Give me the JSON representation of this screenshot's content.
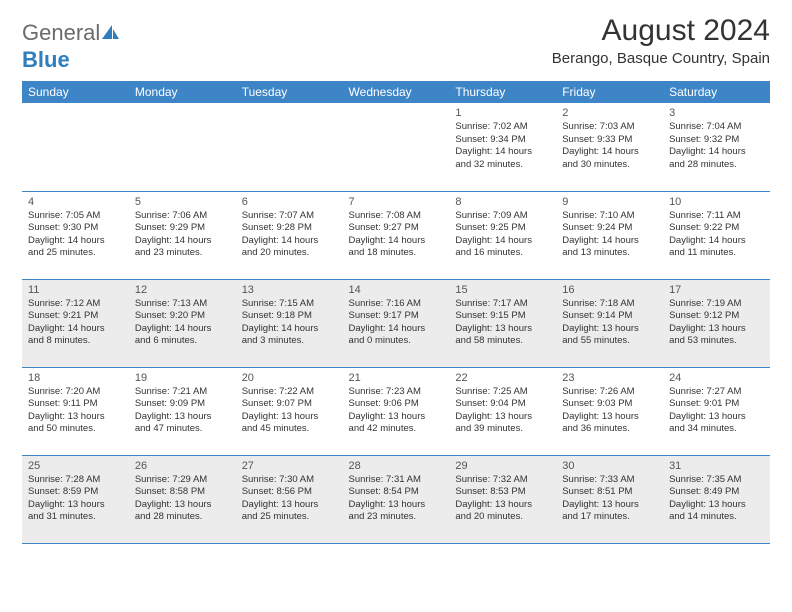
{
  "brand": {
    "part1": "General",
    "part2": "Blue"
  },
  "title": "August 2024",
  "location": "Berango, Basque Country, Spain",
  "colors": {
    "header_bg": "#3d85c6",
    "header_fg": "#ffffff",
    "shade_bg": "#ececec",
    "border": "#3d85c6",
    "logo_gray": "#6b6b6b",
    "logo_blue": "#2f7fbf"
  },
  "weekdays": [
    "Sunday",
    "Monday",
    "Tuesday",
    "Wednesday",
    "Thursday",
    "Friday",
    "Saturday"
  ],
  "weeks": [
    [
      {
        "n": "",
        "sr": "",
        "ss": "",
        "dl": ""
      },
      {
        "n": "",
        "sr": "",
        "ss": "",
        "dl": ""
      },
      {
        "n": "",
        "sr": "",
        "ss": "",
        "dl": ""
      },
      {
        "n": "",
        "sr": "",
        "ss": "",
        "dl": ""
      },
      {
        "n": "1",
        "sr": "Sunrise: 7:02 AM",
        "ss": "Sunset: 9:34 PM",
        "dl": "Daylight: 14 hours and 32 minutes."
      },
      {
        "n": "2",
        "sr": "Sunrise: 7:03 AM",
        "ss": "Sunset: 9:33 PM",
        "dl": "Daylight: 14 hours and 30 minutes."
      },
      {
        "n": "3",
        "sr": "Sunrise: 7:04 AM",
        "ss": "Sunset: 9:32 PM",
        "dl": "Daylight: 14 hours and 28 minutes."
      }
    ],
    [
      {
        "n": "4",
        "sr": "Sunrise: 7:05 AM",
        "ss": "Sunset: 9:30 PM",
        "dl": "Daylight: 14 hours and 25 minutes."
      },
      {
        "n": "5",
        "sr": "Sunrise: 7:06 AM",
        "ss": "Sunset: 9:29 PM",
        "dl": "Daylight: 14 hours and 23 minutes."
      },
      {
        "n": "6",
        "sr": "Sunrise: 7:07 AM",
        "ss": "Sunset: 9:28 PM",
        "dl": "Daylight: 14 hours and 20 minutes."
      },
      {
        "n": "7",
        "sr": "Sunrise: 7:08 AM",
        "ss": "Sunset: 9:27 PM",
        "dl": "Daylight: 14 hours and 18 minutes."
      },
      {
        "n": "8",
        "sr": "Sunrise: 7:09 AM",
        "ss": "Sunset: 9:25 PM",
        "dl": "Daylight: 14 hours and 16 minutes."
      },
      {
        "n": "9",
        "sr": "Sunrise: 7:10 AM",
        "ss": "Sunset: 9:24 PM",
        "dl": "Daylight: 14 hours and 13 minutes."
      },
      {
        "n": "10",
        "sr": "Sunrise: 7:11 AM",
        "ss": "Sunset: 9:22 PM",
        "dl": "Daylight: 14 hours and 11 minutes."
      }
    ],
    [
      {
        "n": "11",
        "sr": "Sunrise: 7:12 AM",
        "ss": "Sunset: 9:21 PM",
        "dl": "Daylight: 14 hours and 8 minutes."
      },
      {
        "n": "12",
        "sr": "Sunrise: 7:13 AM",
        "ss": "Sunset: 9:20 PM",
        "dl": "Daylight: 14 hours and 6 minutes."
      },
      {
        "n": "13",
        "sr": "Sunrise: 7:15 AM",
        "ss": "Sunset: 9:18 PM",
        "dl": "Daylight: 14 hours and 3 minutes."
      },
      {
        "n": "14",
        "sr": "Sunrise: 7:16 AM",
        "ss": "Sunset: 9:17 PM",
        "dl": "Daylight: 14 hours and 0 minutes."
      },
      {
        "n": "15",
        "sr": "Sunrise: 7:17 AM",
        "ss": "Sunset: 9:15 PM",
        "dl": "Daylight: 13 hours and 58 minutes."
      },
      {
        "n": "16",
        "sr": "Sunrise: 7:18 AM",
        "ss": "Sunset: 9:14 PM",
        "dl": "Daylight: 13 hours and 55 minutes."
      },
      {
        "n": "17",
        "sr": "Sunrise: 7:19 AM",
        "ss": "Sunset: 9:12 PM",
        "dl": "Daylight: 13 hours and 53 minutes."
      }
    ],
    [
      {
        "n": "18",
        "sr": "Sunrise: 7:20 AM",
        "ss": "Sunset: 9:11 PM",
        "dl": "Daylight: 13 hours and 50 minutes."
      },
      {
        "n": "19",
        "sr": "Sunrise: 7:21 AM",
        "ss": "Sunset: 9:09 PM",
        "dl": "Daylight: 13 hours and 47 minutes."
      },
      {
        "n": "20",
        "sr": "Sunrise: 7:22 AM",
        "ss": "Sunset: 9:07 PM",
        "dl": "Daylight: 13 hours and 45 minutes."
      },
      {
        "n": "21",
        "sr": "Sunrise: 7:23 AM",
        "ss": "Sunset: 9:06 PM",
        "dl": "Daylight: 13 hours and 42 minutes."
      },
      {
        "n": "22",
        "sr": "Sunrise: 7:25 AM",
        "ss": "Sunset: 9:04 PM",
        "dl": "Daylight: 13 hours and 39 minutes."
      },
      {
        "n": "23",
        "sr": "Sunrise: 7:26 AM",
        "ss": "Sunset: 9:03 PM",
        "dl": "Daylight: 13 hours and 36 minutes."
      },
      {
        "n": "24",
        "sr": "Sunrise: 7:27 AM",
        "ss": "Sunset: 9:01 PM",
        "dl": "Daylight: 13 hours and 34 minutes."
      }
    ],
    [
      {
        "n": "25",
        "sr": "Sunrise: 7:28 AM",
        "ss": "Sunset: 8:59 PM",
        "dl": "Daylight: 13 hours and 31 minutes."
      },
      {
        "n": "26",
        "sr": "Sunrise: 7:29 AM",
        "ss": "Sunset: 8:58 PM",
        "dl": "Daylight: 13 hours and 28 minutes."
      },
      {
        "n": "27",
        "sr": "Sunrise: 7:30 AM",
        "ss": "Sunset: 8:56 PM",
        "dl": "Daylight: 13 hours and 25 minutes."
      },
      {
        "n": "28",
        "sr": "Sunrise: 7:31 AM",
        "ss": "Sunset: 8:54 PM",
        "dl": "Daylight: 13 hours and 23 minutes."
      },
      {
        "n": "29",
        "sr": "Sunrise: 7:32 AM",
        "ss": "Sunset: 8:53 PM",
        "dl": "Daylight: 13 hours and 20 minutes."
      },
      {
        "n": "30",
        "sr": "Sunrise: 7:33 AM",
        "ss": "Sunset: 8:51 PM",
        "dl": "Daylight: 13 hours and 17 minutes."
      },
      {
        "n": "31",
        "sr": "Sunrise: 7:35 AM",
        "ss": "Sunset: 8:49 PM",
        "dl": "Daylight: 13 hours and 14 minutes."
      }
    ]
  ]
}
